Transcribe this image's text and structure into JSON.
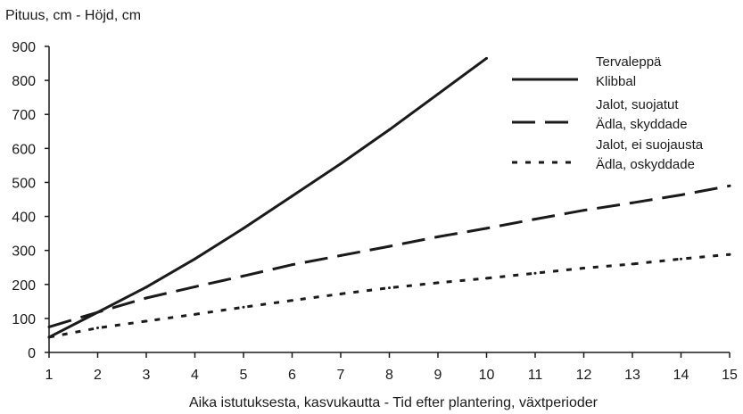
{
  "chart_data": {
    "type": "line",
    "title": "",
    "ylabel": "Pituus, cm  -  Höjd, cm",
    "xlabel": "Aika istutuksesta, kasvukautta  -  Tid efter plantering, växtperioder",
    "xlim": [
      1,
      15
    ],
    "ylim": [
      0,
      900
    ],
    "x_ticks": [
      1,
      2,
      3,
      4,
      5,
      6,
      7,
      8,
      9,
      10,
      11,
      12,
      13,
      14,
      15
    ],
    "y_ticks": [
      0,
      100,
      200,
      300,
      400,
      500,
      600,
      700,
      800,
      900
    ],
    "grid": false,
    "legend_position": "top-right",
    "series": [
      {
        "legend_lines": [
          "Tervaleppä",
          "Klibbal"
        ],
        "style": "solid",
        "x": [
          1,
          2,
          3,
          4,
          5,
          6,
          7,
          8,
          9,
          10
        ],
        "values": [
          45,
          118,
          192,
          275,
          365,
          460,
          555,
          655,
          760,
          865
        ]
      },
      {
        "legend_lines": [
          "Jalot, suojatut",
          "Ädla, skyddade"
        ],
        "style": "long-dash",
        "x": [
          1,
          2,
          3,
          4,
          5,
          6,
          7,
          8,
          9,
          10,
          11,
          12,
          13,
          14,
          15
        ],
        "values": [
          75,
          118,
          160,
          193,
          225,
          258,
          285,
          312,
          340,
          365,
          392,
          418,
          440,
          463,
          490
        ]
      },
      {
        "legend_lines": [
          "Jalot, ei suojausta",
          "Ädla, oskyddade"
        ],
        "style": "dotted",
        "x": [
          1,
          2,
          3,
          4,
          5,
          6,
          7,
          8,
          9,
          10,
          11,
          12,
          13,
          14,
          15
        ],
        "values": [
          45,
          72,
          92,
          112,
          133,
          153,
          172,
          190,
          205,
          218,
          233,
          248,
          260,
          275,
          288
        ]
      }
    ]
  }
}
